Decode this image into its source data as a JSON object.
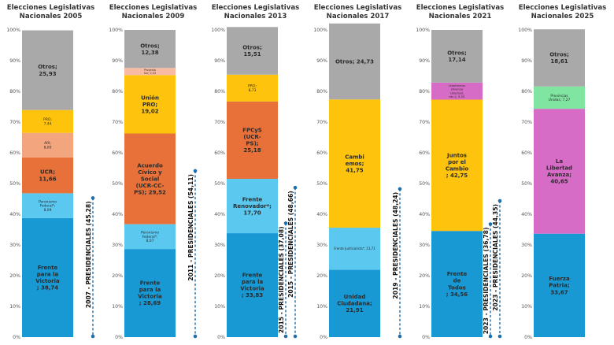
{
  "chart_data": {
    "type": "bar",
    "stacked": true,
    "ylim": [
      0,
      100
    ],
    "yticks": [
      "0%",
      "10%",
      "20%",
      "30%",
      "40%",
      "50%",
      "60%",
      "70%",
      "80%",
      "90%",
      "100%"
    ],
    "legend": "none",
    "annotation_color": "#1f6fad",
    "panels": [
      {
        "title": [
          "Elecciones Legislativas",
          "Nacionales 2005"
        ],
        "segments": [
          {
            "name": "Frente para la Victoria",
            "label": [
              "Frente",
              "para la",
              "Victoria",
              "; 38,74"
            ],
            "value": 38.74,
            "color": "#1899d4"
          },
          {
            "name": "Peronismo Federal",
            "label": [
              "Peronismo",
              "Federal*;",
              "8,09"
            ],
            "value": 8.09,
            "color": "#5bc8f0"
          },
          {
            "name": "UCR",
            "label": [
              "UCR;",
              "11,66"
            ],
            "value": 11.66,
            "color": "#e8713a"
          },
          {
            "name": "ARI",
            "label": [
              "ARI;",
              "8,00"
            ],
            "value": 8.0,
            "color": "#f3a57e"
          },
          {
            "name": "PRO",
            "label": [
              "PRO;",
              "7,44"
            ],
            "value": 7.44,
            "color": "#fdc30d"
          },
          {
            "name": "Otros",
            "label": [
              "Otros;",
              "25,93"
            ],
            "value": 25.93,
            "color": "#a9a9a9"
          }
        ],
        "annotations": [
          {
            "text": "2007 - PRESIDENCIALES (45,28)",
            "value": 45.28
          }
        ]
      },
      {
        "title": [
          "Elecciones Legislativas",
          "Nacionales 2009"
        ],
        "segments": [
          {
            "name": "Frente para la Victoria",
            "label": [
              "Frente",
              "para la",
              "Victoria",
              "; 28,69"
            ],
            "value": 28.69,
            "color": "#1899d4"
          },
          {
            "name": "Peronismo Federal",
            "label": [
              "Peronismo",
              "Federal*;",
              "8,07"
            ],
            "value": 8.07,
            "color": "#5bc8f0"
          },
          {
            "name": "Acuerdo Cívico y Social",
            "label": [
              "Acuerdo",
              "Cívico y",
              "Social",
              "(UCR-CC-",
              "PS); 29,52"
            ],
            "value": 29.52,
            "color": "#e8713a"
          },
          {
            "name": "Unión PRO",
            "label": [
              "Unión",
              "PRO;",
              "19,02"
            ],
            "value": 19.02,
            "color": "#fdc30d"
          },
          {
            "name": "Proyecto Sur",
            "label": [
              "Proyecto",
              "Sur; 2,32"
            ],
            "value": 2.32,
            "color": "#f6bba2"
          },
          {
            "name": "Otros",
            "label": [
              "Otros;",
              "12,38"
            ],
            "value": 12.38,
            "color": "#a9a9a9"
          }
        ],
        "annotations": [
          {
            "text": "2011 - PRESIDENCIALES (54,11)",
            "value": 54.11
          }
        ]
      },
      {
        "title": [
          "Elecciones Legislativas",
          "Nacionales 2013"
        ],
        "segments": [
          {
            "name": "Frente para la Victoria",
            "label": [
              "Frente",
              "para la",
              "Victoria",
              "; 33,83"
            ],
            "value": 33.83,
            "color": "#1899d4"
          },
          {
            "name": "Frente Renovador",
            "label": [
              "Frente",
              "Renovador*;",
              "17,70"
            ],
            "value": 17.7,
            "color": "#5bc8f0"
          },
          {
            "name": "FPCyS (UCR-PS)",
            "label": [
              "FPCyS",
              "(UCR-",
              "PS);",
              "25,18"
            ],
            "value": 25.18,
            "color": "#e8713a"
          },
          {
            "name": "PRO",
            "label": [
              "PRO;",
              "8,73"
            ],
            "value": 8.73,
            "color": "#fdc30d"
          },
          {
            "name": "Otros",
            "label": [
              "Otros;",
              "15,51"
            ],
            "value": 15.51,
            "color": "#a9a9a9"
          }
        ],
        "annotations": [
          {
            "text": "2015 - PRESIDENCIALES (37,08)",
            "value": 37.08
          },
          {
            "text": "2015 - PRESIDENCIALES (48,66)",
            "value": 48.66
          }
        ]
      },
      {
        "title": [
          "Elecciones Legislativas",
          "Nacionales 2017"
        ],
        "segments": [
          {
            "name": "Unidad Ciudadana",
            "label": [
              "Unidad",
              "Ciudadana;",
              "21,91"
            ],
            "value": 21.91,
            "color": "#1899d4"
          },
          {
            "name": "Frente Justicialista",
            "label": [
              "Frente Justicialista*; 13,71"
            ],
            "value": 13.71,
            "color": "#5bc8f0"
          },
          {
            "name": "Cambiemos",
            "label": [
              "Cambi",
              "emos;",
              "41,75"
            ],
            "value": 41.75,
            "color": "#fdc30d"
          },
          {
            "name": "Otros",
            "label": [
              "Otros; 24,73"
            ],
            "value": 24.73,
            "color": "#a9a9a9"
          }
        ],
        "annotations": [
          {
            "text": "2019 - PRESIDENCIALES (48,24)",
            "value": 48.24
          }
        ]
      },
      {
        "title": [
          "Elecciones Legislativas",
          "Nacionales 2021"
        ],
        "segments": [
          {
            "name": "Frente de Todos",
            "label": [
              "Frente",
              "de",
              "Todos",
              "; 34,56"
            ],
            "value": 34.56,
            "color": "#1899d4"
          },
          {
            "name": "Juntos por el Cambio",
            "label": [
              "Juntos",
              "por el",
              "Cambio",
              "; 42,75"
            ],
            "value": 42.75,
            "color": "#fdc30d"
          },
          {
            "name": "Libertarios",
            "label": [
              "Libertarios",
              "(Avanza",
              "Libertad,",
              "etc.); 5,55"
            ],
            "value": 5.55,
            "color": "#d66cc6"
          },
          {
            "name": "Otros",
            "label": [
              "Otros;",
              "17,14"
            ],
            "value": 17.14,
            "color": "#a9a9a9"
          }
        ],
        "annotations": [
          {
            "text": "2023 - PRESIDENCIALES (36,78)",
            "value": 36.78
          },
          {
            "text": "2023 - PRESIDENCIALES (44,35)",
            "value": 44.35
          }
        ]
      },
      {
        "title": [
          "Elecciones Legislativas",
          "Nacionales 2025"
        ],
        "segments": [
          {
            "name": "Fuerza Patria",
            "label": [
              "Fuerza",
              "Patria;",
              "33,67"
            ],
            "value": 33.67,
            "color": "#1899d4"
          },
          {
            "name": "La Libertad Avanza",
            "label": [
              "La",
              "Libertad",
              "Avanza;",
              "40,65"
            ],
            "value": 40.65,
            "color": "#d66cc6"
          },
          {
            "name": "Provincias Unidas",
            "label": [
              "Provincias",
              "Unidas; 7,27"
            ],
            "value": 7.27,
            "color": "#7fe5a1"
          },
          {
            "name": "Otros",
            "label": [
              "Otros;",
              "18,61"
            ],
            "value": 18.61,
            "color": "#a9a9a9"
          }
        ],
        "annotations": []
      }
    ]
  }
}
